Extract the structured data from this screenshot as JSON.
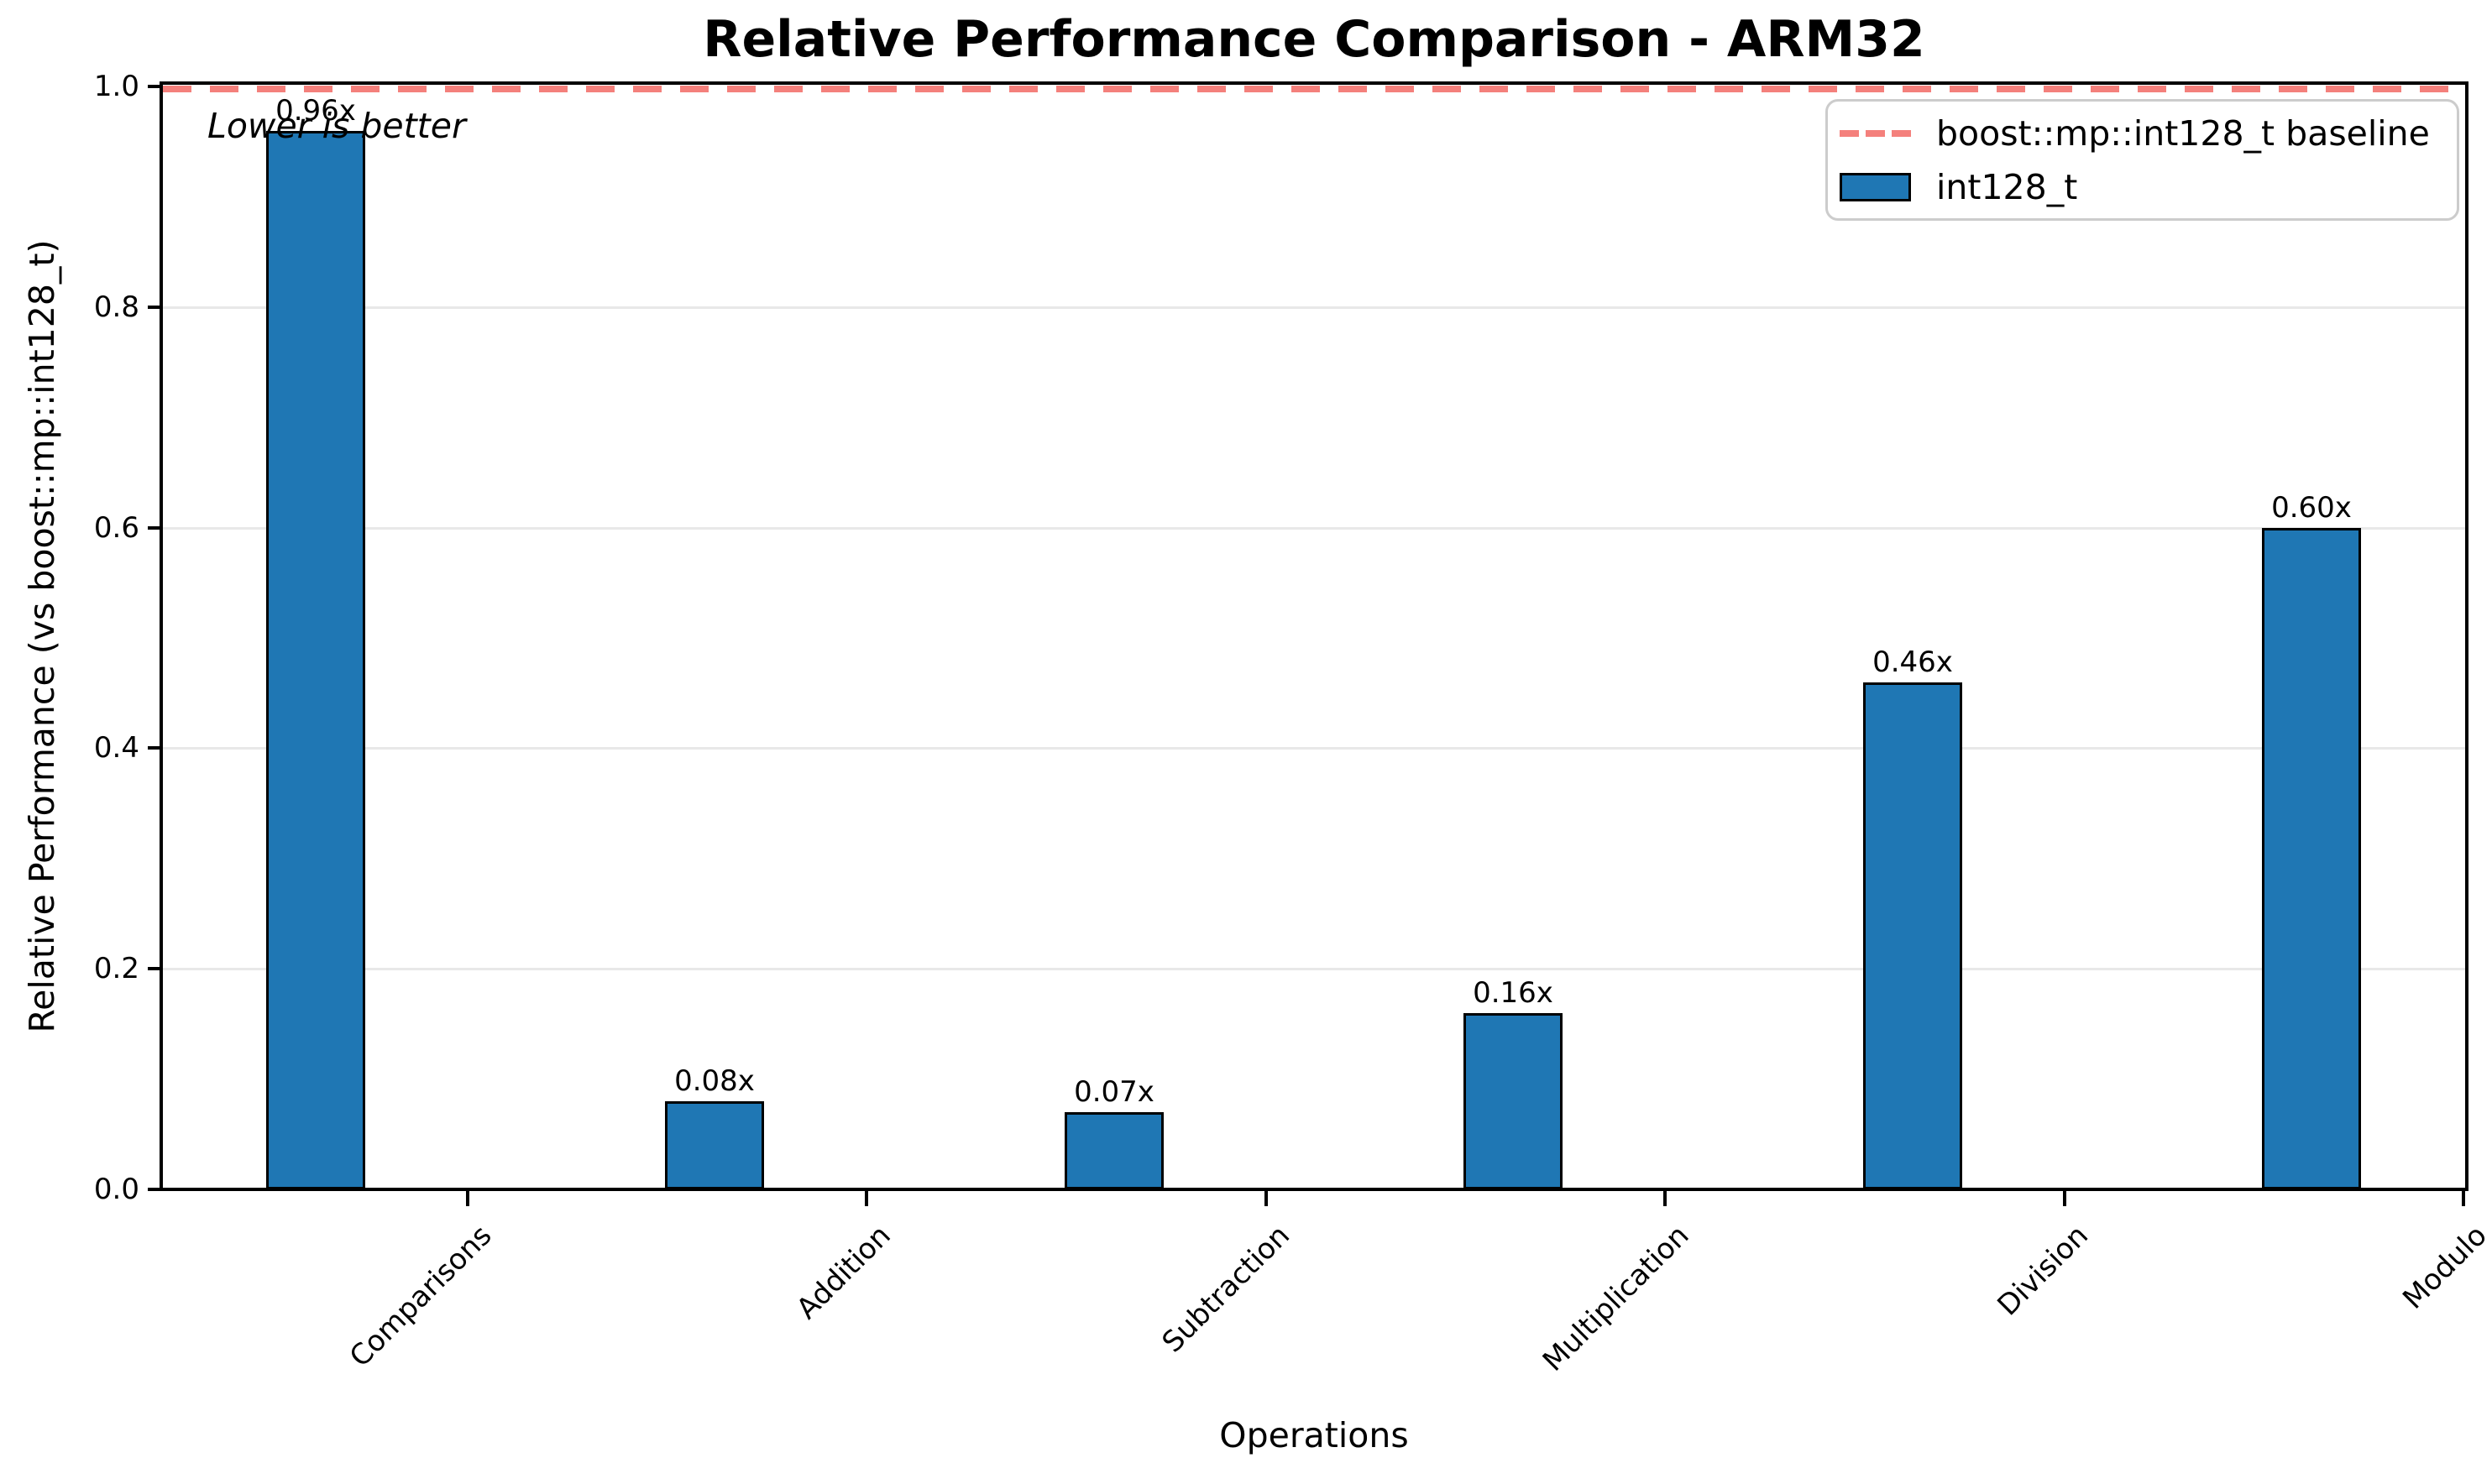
{
  "chart_data": {
    "type": "bar",
    "title": "Relative Performance Comparison - ARM32",
    "xlabel": "Operations",
    "ylabel": "Relative Performance (vs boost::mp::int128_t)",
    "categories": [
      "Comparisons",
      "Addition",
      "Subtraction",
      "Multiplication",
      "Division",
      "Modulo"
    ],
    "values": [
      0.96,
      0.08,
      0.07,
      0.16,
      0.46,
      0.6
    ],
    "bar_labels": [
      "0.96x",
      "0.08x",
      "0.07x",
      "0.16x",
      "0.46x",
      "0.60x"
    ],
    "series_name": "int128_t",
    "baseline": {
      "value": 1.0,
      "label": "boost::mp::int128_t baseline"
    },
    "annotation": "Lower is better",
    "ylim": [
      0.0,
      1.0
    ],
    "yticks": [
      0.0,
      0.2,
      0.4,
      0.6,
      0.8,
      1.0
    ],
    "ytick_labels": [
      "0.0",
      "0.2",
      "0.4",
      "0.6",
      "0.8",
      "1.0"
    ],
    "grid": "horizontal",
    "legend_position": "upper right",
    "colors": {
      "bar_fill": "#1f77b4",
      "bar_edge": "#000000",
      "baseline": "#f4807c",
      "gridline": "#e8e8e8",
      "text": "#000000"
    }
  }
}
